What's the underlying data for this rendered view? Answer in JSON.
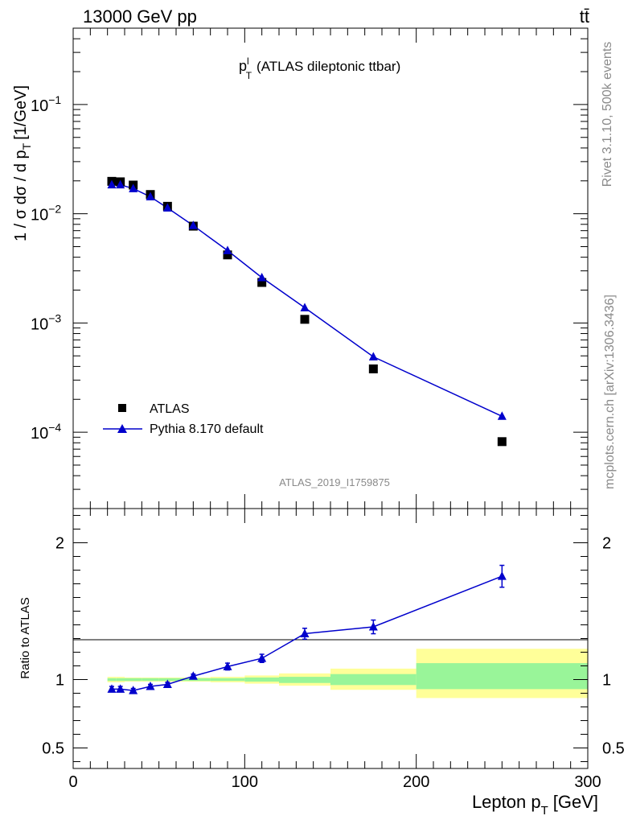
{
  "header": {
    "left": "13000 GeV pp",
    "right": "tt̄"
  },
  "side_labels": {
    "rivet": "Rivet 3.1.10,  500k events",
    "mcplots": "mcplots.cern.ch [arXiv:1306.3436]"
  },
  "watermark": "ATLAS_2019_I1759875",
  "colors": {
    "data": "#000000",
    "mc": "#0000cc",
    "band_inner": "#99f599",
    "band_outer": "#ffff99"
  },
  "chart_data": [
    {
      "type": "scatter",
      "title_main": "p",
      "title_sup": "l",
      "title_sub": "T",
      "title_rest": "(ATLAS dileptonic ttbar)",
      "ylabel_main": "1 / σ  dσ / d p",
      "ylabel_sub": "T",
      "ylabel_unit": "[1/GeV]",
      "yscale": "log",
      "ylim": [
        2e-05,
        0.5
      ],
      "xlim": [
        0,
        300
      ],
      "yticks": [
        {
          "v": 0.1,
          "base": "10",
          "exp": "−1"
        },
        {
          "v": 0.01,
          "base": "10",
          "exp": "−2"
        },
        {
          "v": 0.001,
          "base": "10",
          "exp": "−3"
        },
        {
          "v": 0.0001,
          "base": "10",
          "exp": "−4"
        }
      ],
      "legend": [
        {
          "label": "ATLAS",
          "marker": "square"
        },
        {
          "label": "Pythia 8.170 default",
          "marker": "triangle"
        }
      ],
      "series": [
        {
          "name": "ATLAS",
          "x": [
            22.5,
            27.5,
            35,
            45,
            55,
            70,
            90,
            110,
            135,
            175,
            250
          ],
          "y": [
            0.0198,
            0.0196,
            0.0183,
            0.015,
            0.0117,
            0.0077,
            0.0042,
            0.00235,
            0.00108,
            0.00038,
            8.2e-05
          ]
        },
        {
          "name": "Pythia 8.170 default",
          "x": [
            22.5,
            27.5,
            35,
            45,
            55,
            70,
            90,
            110,
            135,
            175,
            250
          ],
          "y": [
            0.0184,
            0.0184,
            0.017,
            0.0143,
            0.0113,
            0.0078,
            0.0046,
            0.0026,
            0.00138,
            0.00049,
            0.00014
          ]
        }
      ]
    },
    {
      "type": "scatter",
      "ylabel": "Ratio to ATLAS",
      "xlabel_main": "Lepton p",
      "xlabel_sub": "T",
      "xlabel_unit": "[GeV]",
      "xlim": [
        0,
        300
      ],
      "ylim": [
        0.35,
        2.25
      ],
      "yticks": [
        {
          "v": 0.5,
          "label": "0.5"
        },
        {
          "v": 1,
          "label": "1"
        },
        {
          "v": 2,
          "label": "2"
        }
      ],
      "xticks": [
        {
          "v": 0,
          "label": "0"
        },
        {
          "v": 100,
          "label": "100"
        },
        {
          "v": 200,
          "label": "200"
        },
        {
          "v": 300,
          "label": "300"
        }
      ],
      "bands": [
        {
          "x0": 20,
          "x1": 25,
          "inner": [
            0.99,
            1.01
          ],
          "outer": [
            0.98,
            1.02
          ]
        },
        {
          "x0": 25,
          "x1": 30,
          "inner": [
            0.99,
            1.01
          ],
          "outer": [
            0.98,
            1.02
          ]
        },
        {
          "x0": 30,
          "x1": 40,
          "inner": [
            0.99,
            1.01
          ],
          "outer": [
            0.985,
            1.015
          ]
        },
        {
          "x0": 40,
          "x1": 50,
          "inner": [
            0.99,
            1.01
          ],
          "outer": [
            0.985,
            1.015
          ]
        },
        {
          "x0": 50,
          "x1": 60,
          "inner": [
            0.99,
            1.01
          ],
          "outer": [
            0.985,
            1.015
          ]
        },
        {
          "x0": 60,
          "x1": 80,
          "inner": [
            0.99,
            1.01
          ],
          "outer": [
            0.985,
            1.015
          ]
        },
        {
          "x0": 80,
          "x1": 100,
          "inner": [
            0.99,
            1.01
          ],
          "outer": [
            0.98,
            1.02
          ]
        },
        {
          "x0": 100,
          "x1": 120,
          "inner": [
            0.985,
            1.015
          ],
          "outer": [
            0.97,
            1.03
          ]
        },
        {
          "x0": 120,
          "x1": 150,
          "inner": [
            0.975,
            1.02
          ],
          "outer": [
            0.955,
            1.045
          ]
        },
        {
          "x0": 150,
          "x1": 200,
          "inner": [
            0.96,
            1.04
          ],
          "outer": [
            0.925,
            1.08
          ]
        },
        {
          "x0": 200,
          "x1": 300,
          "inner": [
            0.93,
            1.12
          ],
          "outer": [
            0.865,
            1.225
          ]
        }
      ],
      "series": [
        {
          "name": "Pythia 8.170 default",
          "x": [
            22.5,
            27.5,
            35,
            45,
            55,
            70,
            90,
            110,
            135,
            175,
            250
          ],
          "y": [
            0.93,
            0.93,
            0.92,
            0.95,
            0.965,
            1.025,
            1.095,
            1.155,
            1.335,
            1.385,
            1.755
          ],
          "err": [
            0.02,
            0.02,
            0.015,
            0.015,
            0.015,
            0.015,
            0.025,
            0.03,
            0.04,
            0.05,
            0.08
          ]
        }
      ]
    }
  ]
}
